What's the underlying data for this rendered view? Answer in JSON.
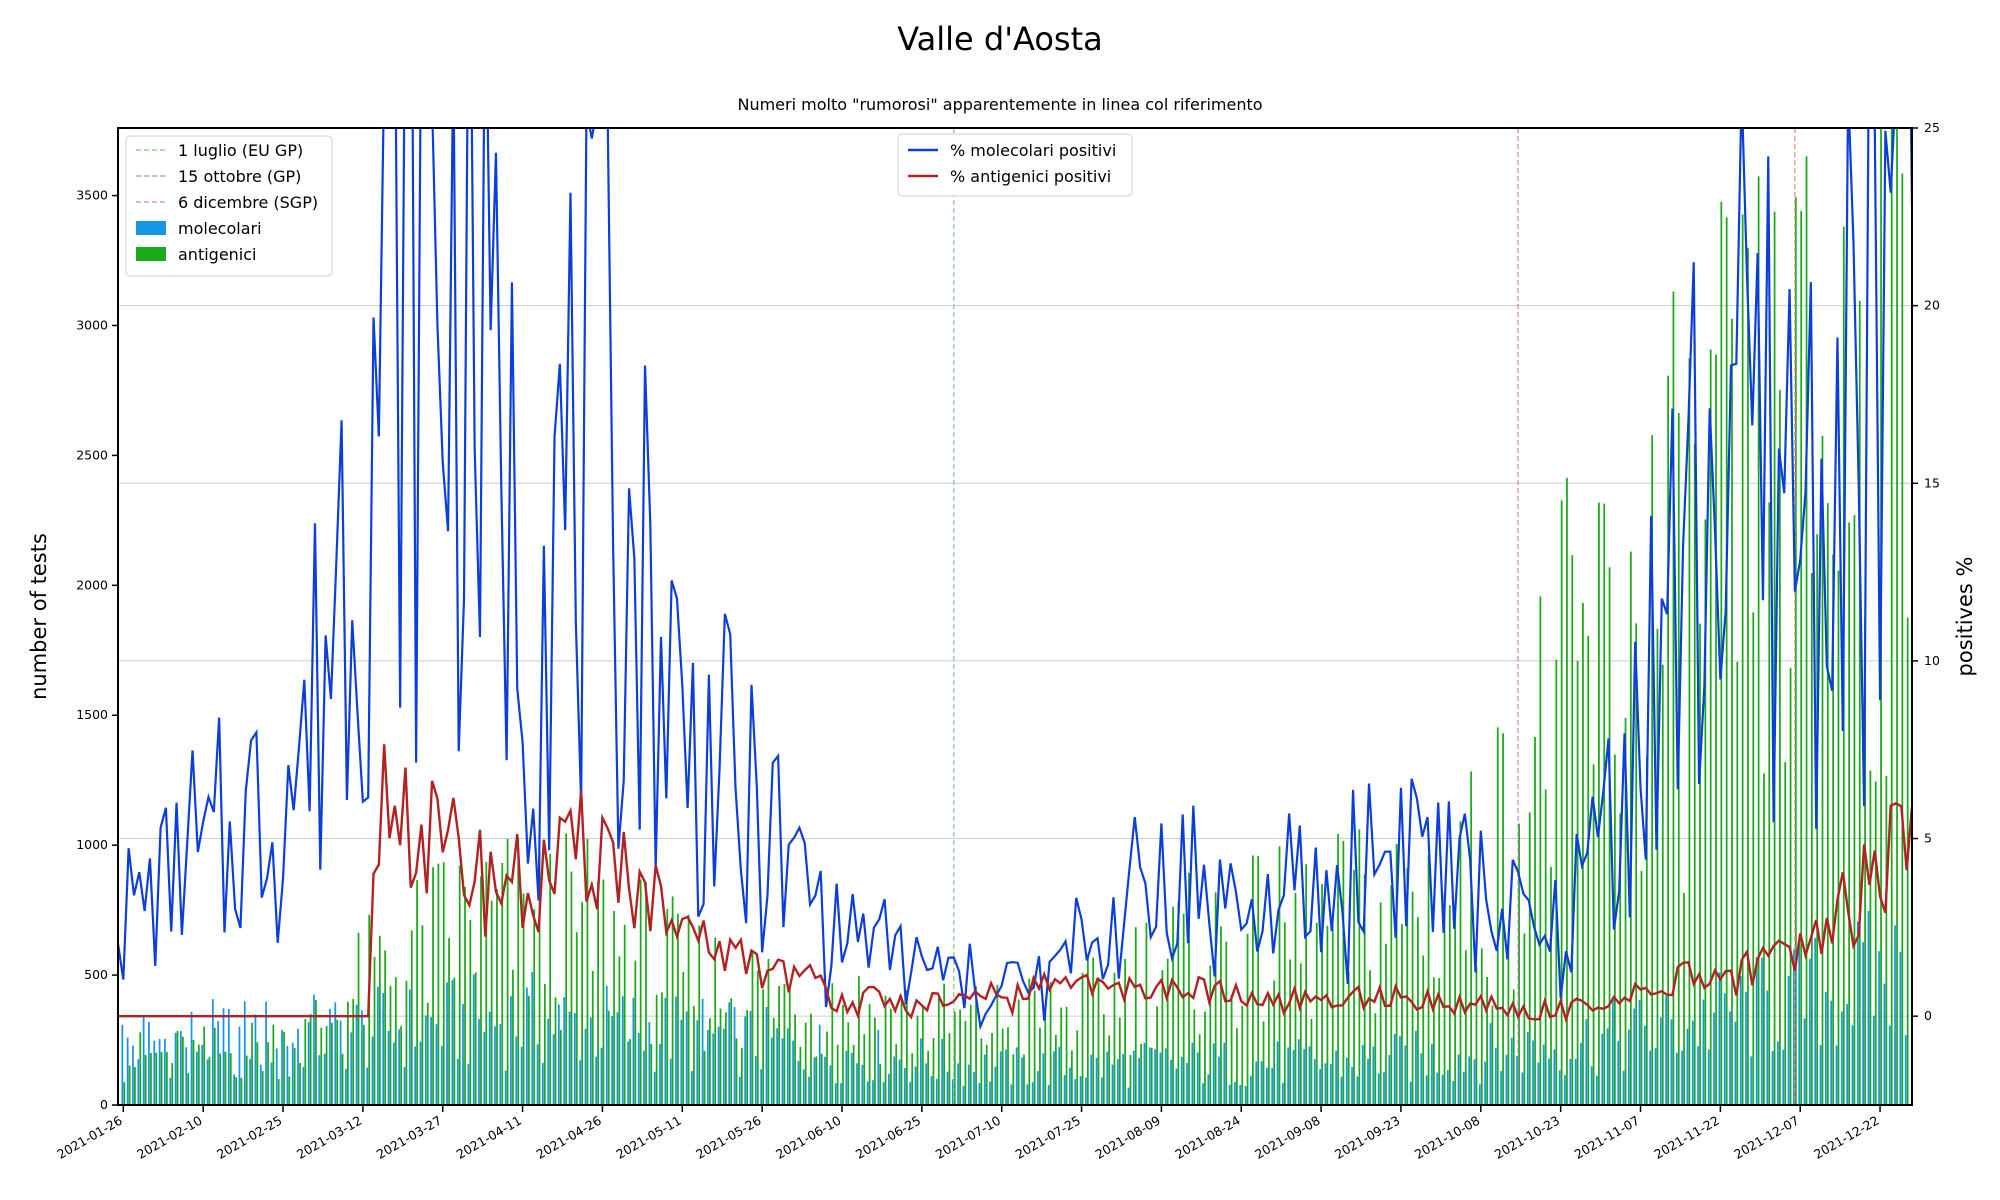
{
  "chart_data": {
    "type": "bar+line",
    "title": "Valle d'Aosta",
    "subtitle": "Numeri molto \"rumorosi\" apparentemente in linea col riferimento",
    "ylabel_left": "number of tests",
    "ylabel_right": "positives %",
    "ylim_left": [
      0,
      3760
    ],
    "ylim_right": [
      -2.5,
      25
    ],
    "yticks_left": [
      "0",
      "500",
      "1000",
      "1500",
      "2000",
      "2500",
      "3000",
      "3500"
    ],
    "yticks_right": [
      "0",
      "5",
      "10",
      "15",
      "20",
      "25"
    ],
    "x_range": [
      "2021-01-25",
      "2021-12-28"
    ],
    "xticks": [
      "2021-01-26",
      "2021-02-10",
      "2021-02-25",
      "2021-03-12",
      "2021-03-27",
      "2021-04-11",
      "2021-04-26",
      "2021-05-11",
      "2021-05-26",
      "2021-06-10",
      "2021-06-25",
      "2021-07-10",
      "2021-07-25",
      "2021-08-09",
      "2021-08-24",
      "2021-09-08",
      "2021-09-23",
      "2021-10-08",
      "2021-10-23",
      "2021-11-07",
      "2021-11-22",
      "2021-12-07",
      "2021-12-22"
    ],
    "grid": true,
    "bar_legend_position": "top-left",
    "line_legend_position": "top-center",
    "reference_lines": [
      {
        "name": "1 luglio (EU GP)",
        "date": "2021-07-01",
        "color": "#7fc97f"
      },
      {
        "name": "15 ottobre (GP)",
        "date": "2021-10-15",
        "color": "#c77cc7"
      },
      {
        "name": "6 dicembre (SGP)",
        "date": "2021-12-06",
        "color": "#f08080"
      }
    ],
    "series": [
      {
        "name": "molecolari",
        "kind": "bar",
        "axis": "left",
        "color": "#1597e5",
        "anchors": [
          [
            "2021-01-26",
            240
          ],
          [
            "2021-02-15",
            260
          ],
          [
            "2021-03-10",
            280
          ],
          [
            "2021-04-10",
            330
          ],
          [
            "2021-05-10",
            280
          ],
          [
            "2021-06-10",
            200
          ],
          [
            "2021-07-10",
            140
          ],
          [
            "2021-08-10",
            160
          ],
          [
            "2021-09-10",
            160
          ],
          [
            "2021-10-10",
            200
          ],
          [
            "2021-11-10",
            280
          ],
          [
            "2021-12-10",
            420
          ],
          [
            "2021-12-28",
            520
          ]
        ]
      },
      {
        "name": "antigenici",
        "kind": "bar",
        "axis": "left",
        "color": "#1aaa1a",
        "anchors": [
          [
            "2021-01-26",
            180
          ],
          [
            "2021-02-15",
            200
          ],
          [
            "2021-03-01",
            260
          ],
          [
            "2021-03-15",
            500
          ],
          [
            "2021-04-01",
            700
          ],
          [
            "2021-04-26",
            650
          ],
          [
            "2021-05-11",
            480
          ],
          [
            "2021-06-10",
            380
          ],
          [
            "2021-07-01",
            300
          ],
          [
            "2021-07-25",
            350
          ],
          [
            "2021-08-09",
            550
          ],
          [
            "2021-09-08",
            650
          ],
          [
            "2021-10-08",
            850
          ],
          [
            "2021-10-23",
            1500
          ],
          [
            "2021-11-07",
            1800
          ],
          [
            "2021-11-22",
            2200
          ],
          [
            "2021-12-07",
            2400
          ],
          [
            "2021-12-22",
            2800
          ],
          [
            "2021-12-28",
            3000
          ]
        ]
      },
      {
        "name": "% molecolari positivi",
        "kind": "line",
        "axis": "right",
        "color": "#0b3fd8",
        "anchors": [
          [
            "2021-01-26",
            3
          ],
          [
            "2021-02-15",
            5
          ],
          [
            "2021-03-01",
            7
          ],
          [
            "2021-03-10",
            15
          ],
          [
            "2021-03-20",
            22
          ],
          [
            "2021-04-01",
            20
          ],
          [
            "2021-04-11",
            12
          ],
          [
            "2021-04-26",
            16
          ],
          [
            "2021-05-11",
            8
          ],
          [
            "2021-05-26",
            5
          ],
          [
            "2021-06-10",
            2.5
          ],
          [
            "2021-06-25",
            1.5
          ],
          [
            "2021-07-10",
            0.5
          ],
          [
            "2021-07-25",
            2
          ],
          [
            "2021-08-09",
            4
          ],
          [
            "2021-08-24",
            3
          ],
          [
            "2021-09-08",
            3
          ],
          [
            "2021-09-23",
            5
          ],
          [
            "2021-10-08",
            3
          ],
          [
            "2021-10-23",
            2
          ],
          [
            "2021-11-07",
            8
          ],
          [
            "2021-11-22",
            16
          ],
          [
            "2021-12-07",
            14
          ],
          [
            "2021-12-22",
            18
          ],
          [
            "2021-12-28",
            24
          ]
        ]
      },
      {
        "name": "% antigenici positivi",
        "kind": "line",
        "axis": "right",
        "color": "#b22222",
        "anchors": [
          [
            "2021-01-26",
            0
          ],
          [
            "2021-03-13",
            0
          ],
          [
            "2021-03-15",
            6.5
          ],
          [
            "2021-03-27",
            4.5
          ],
          [
            "2021-04-11",
            3.5
          ],
          [
            "2021-04-26",
            5
          ],
          [
            "2021-05-11",
            2
          ],
          [
            "2021-05-26",
            1.5
          ],
          [
            "2021-06-10",
            0.5
          ],
          [
            "2021-06-25",
            0.3
          ],
          [
            "2021-07-10",
            0.5
          ],
          [
            "2021-07-25",
            1
          ],
          [
            "2021-08-09",
            0.8
          ],
          [
            "2021-08-24",
            0.5
          ],
          [
            "2021-09-08",
            0.3
          ],
          [
            "2021-09-23",
            0.5
          ],
          [
            "2021-10-08",
            0.3
          ],
          [
            "2021-10-23",
            0.2
          ],
          [
            "2021-11-07",
            0.5
          ],
          [
            "2021-11-22",
            1.2
          ],
          [
            "2021-12-07",
            1.5
          ],
          [
            "2021-12-22",
            4
          ],
          [
            "2021-12-28",
            6.5
          ]
        ]
      }
    ]
  }
}
